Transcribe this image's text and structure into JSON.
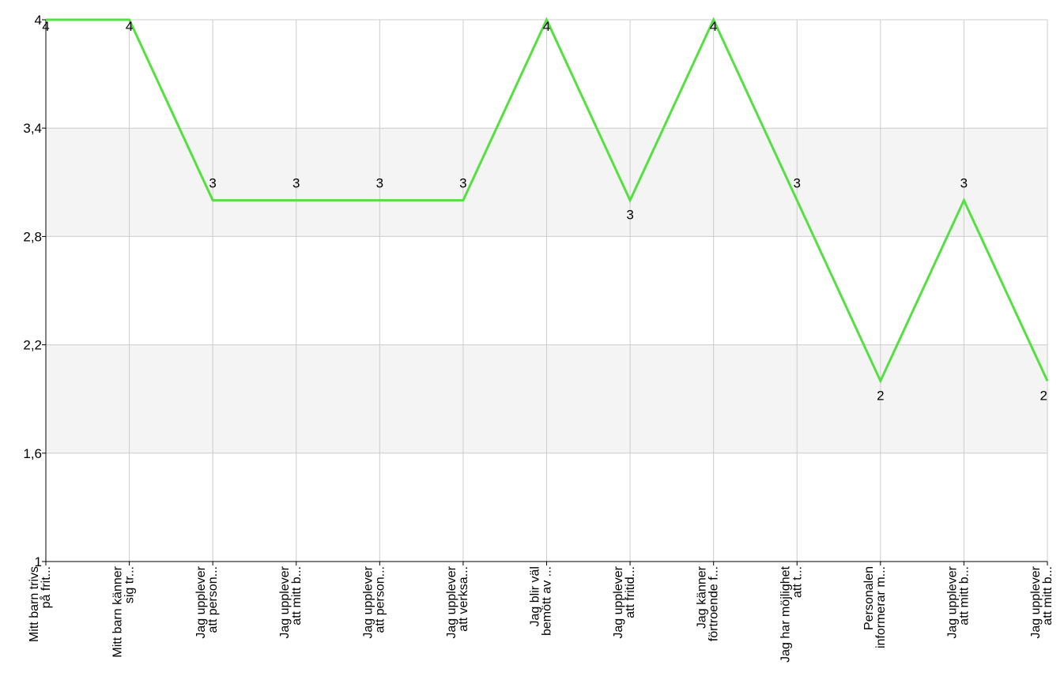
{
  "chart_data": {
    "type": "line",
    "categories": [
      [
        "Mitt barn trivs",
        "på frit..."
      ],
      [
        "Mitt barn känner",
        "sig tr..."
      ],
      [
        "Jag upplever",
        "att person..."
      ],
      [
        "Jag upplever",
        "att mitt b..."
      ],
      [
        "Jag upplever",
        "att person..."
      ],
      [
        "Jag upplever",
        "att verksa..."
      ],
      [
        "Jag blir väl",
        "bemött av ..."
      ],
      [
        "Jag upplever",
        "att fritid..."
      ],
      [
        "Jag känner",
        "förtroende f..."
      ],
      [
        "Jag har möjlighet",
        "att t..."
      ],
      [
        "Personalen",
        "informerar m..."
      ],
      [
        "Jag upplever",
        "att mitt b..."
      ],
      [
        "Jag upplever",
        "att mitt b..."
      ]
    ],
    "series": [
      {
        "values": [
          4,
          4,
          3,
          3,
          3,
          3,
          4,
          3,
          4,
          3,
          2,
          3,
          2
        ],
        "color": "#55e041"
      }
    ],
    "data_labels": [
      "4",
      "4",
      "3",
      "3",
      "3",
      "3",
      "4",
      "3",
      "4",
      "3",
      "2",
      "3",
      "2"
    ],
    "ylim": [
      1,
      4
    ],
    "yticks": [
      "1",
      "1,6",
      "2,2",
      "2,8",
      "3,4",
      "4"
    ],
    "title": "",
    "xlabel": "",
    "ylabel": "",
    "grid": true,
    "band_color": "#f4f4f4",
    "grid_color": "#cccccc",
    "axis_color": "#000000"
  }
}
